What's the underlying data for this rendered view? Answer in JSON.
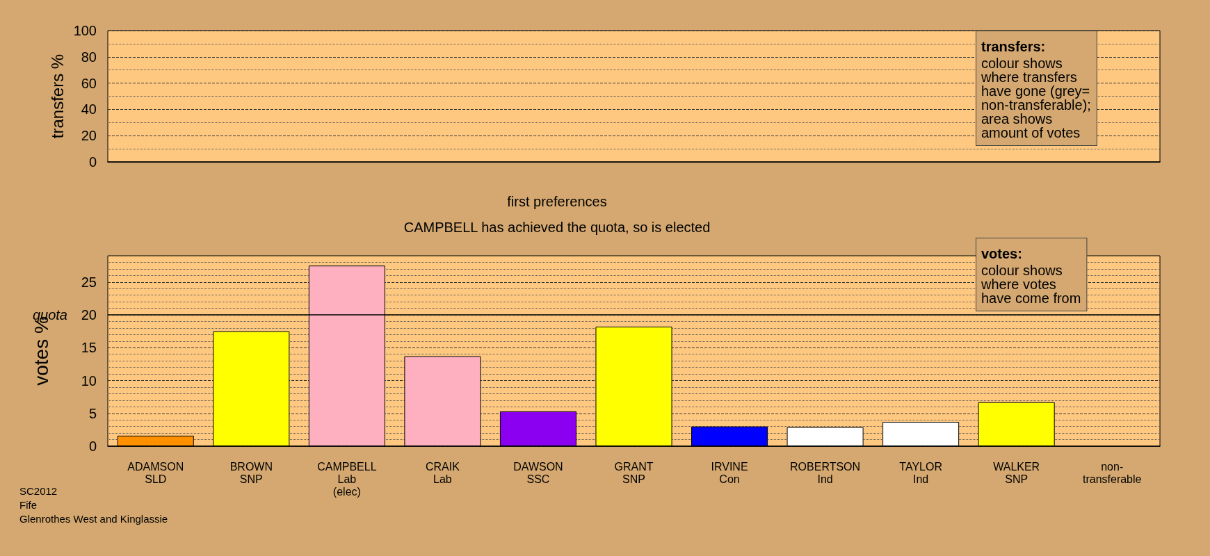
{
  "chart_data": [
    {
      "type": "bar",
      "ylabel": "transfers %",
      "categories": [
        null,
        null,
        null,
        null,
        null,
        null,
        null,
        null,
        null,
        null,
        null
      ],
      "values": [
        null,
        null,
        null,
        null,
        null,
        null,
        null,
        null,
        null,
        null,
        null
      ],
      "ylim": [
        0,
        100
      ],
      "yticks": [
        0,
        20,
        40,
        60,
        80,
        100
      ],
      "grid": "y",
      "tick_labels": "y",
      "annotations": [
        "transfers:\ncolour shows\nwhere transfers\nhave gone (grey=\nnon-transferable);\narea shows\namount of votes"
      ]
    },
    {
      "type": "bar",
      "title": "first preferences",
      "subtitle": "CAMPBELL has achieved the quota, so is elected",
      "ylabel": "votes %",
      "categories": [
        "ADAMSON\nSLD",
        "BROWN\nSNP",
        "CAMPBELL\nLab\n(elec)",
        "CRAIK\nLab",
        "DAWSON\nSSC",
        "GRANT\nSNP",
        "IRVINE\nCon",
        "ROBERTSON\nInd",
        "TAYLOR\nInd",
        "WALKER\nSNP",
        "non-\ntransferable"
      ],
      "values": [
        1.6,
        17.5,
        27.5,
        13.7,
        5.3,
        18.2,
        3.0,
        2.9,
        3.7,
        6.7,
        null
      ],
      "colors": [
        "#ff9000",
        "#ffff00",
        "#ffb0c0",
        "#ffb0c0",
        "#8b00f0",
        "#ffff00",
        "#0000ff",
        "#ffffff",
        "#ffffff",
        "#ffff00",
        null
      ],
      "ylim": [
        0,
        29
      ],
      "yticks": [
        0,
        5,
        10,
        15,
        20,
        25
      ],
      "grid": "y",
      "ref_lines": [
        {
          "axis": "y",
          "value": 20,
          "label": "quota",
          "color": "#000000",
          "line_style": "solid"
        }
      ],
      "annotations": [
        "votes:\ncolour shows\nwhere votes\nhave come from",
        "SC2012\nFife\nGlenrothes West and Kinglassie"
      ]
    }
  ]
}
